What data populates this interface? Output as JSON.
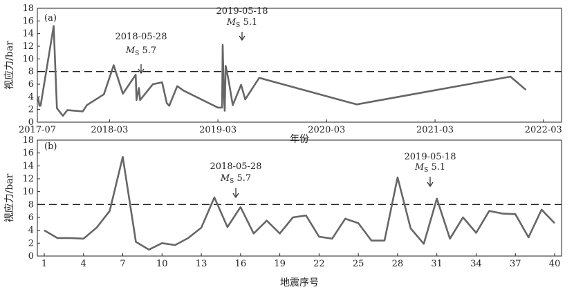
{
  "chart_data": [
    {
      "panel": "(a)",
      "type": "line",
      "xlabel": "年份",
      "ylabel": "视应力/bar",
      "ylim": [
        0,
        18
      ],
      "yticks": [
        "0",
        "2",
        "4",
        "6",
        "8",
        "10",
        "12",
        "14",
        "16",
        "18"
      ],
      "xlim": [
        "2017-07-01",
        "2022-05-01"
      ],
      "xticks": [
        {
          "date": "2017-07-01",
          "label": "2017-07"
        },
        {
          "date": "2018-03-01",
          "label": "2018-03"
        },
        {
          "date": "2019-03-01",
          "label": "2019-03"
        },
        {
          "date": "2020-03-01",
          "label": "2020-03"
        },
        {
          "date": "2021-03-01",
          "label": "2021-03"
        },
        {
          "date": "2022-03-01",
          "label": "2022-03"
        }
      ],
      "threshold": 8,
      "series": [
        {
          "color": "#666666",
          "points": [
            {
              "x": "2017-07-03",
              "y": 4.0
            },
            {
              "x": "2017-07-08",
              "y": 2.6
            },
            {
              "x": "2017-07-12",
              "y": 2.6
            },
            {
              "x": "2017-08-25",
              "y": 15.2
            },
            {
              "x": "2017-09-05",
              "y": 2.2
            },
            {
              "x": "2017-09-25",
              "y": 1.0
            },
            {
              "x": "2017-10-10",
              "y": 1.9
            },
            {
              "x": "2017-12-01",
              "y": 1.7
            },
            {
              "x": "2017-12-15",
              "y": 2.7
            },
            {
              "x": "2018-02-10",
              "y": 4.4
            },
            {
              "x": "2018-03-15",
              "y": 9.0
            },
            {
              "x": "2018-04-15",
              "y": 4.5
            },
            {
              "x": "2018-05-28",
              "y": 7.5
            },
            {
              "x": "2018-05-31",
              "y": 3.5
            },
            {
              "x": "2018-06-08",
              "y": 5.4
            },
            {
              "x": "2018-06-12",
              "y": 3.5
            },
            {
              "x": "2018-07-25",
              "y": 6.0
            },
            {
              "x": "2018-08-25",
              "y": 6.3
            },
            {
              "x": "2018-09-10",
              "y": 3.0
            },
            {
              "x": "2018-09-18",
              "y": 2.6
            },
            {
              "x": "2018-10-15",
              "y": 5.7
            },
            {
              "x": "2018-11-05",
              "y": 5.0
            },
            {
              "x": "2019-03-01",
              "y": 2.3
            },
            {
              "x": "2019-03-15",
              "y": 2.3
            },
            {
              "x": "2019-03-17",
              "y": 12.2
            },
            {
              "x": "2019-03-21",
              "y": 4.3
            },
            {
              "x": "2019-03-24",
              "y": 1.8
            },
            {
              "x": "2019-03-27",
              "y": 8.9
            },
            {
              "x": "2019-04-05",
              "y": 6.9
            },
            {
              "x": "2019-04-20",
              "y": 2.7
            },
            {
              "x": "2019-05-18",
              "y": 5.9
            },
            {
              "x": "2019-06-01",
              "y": 3.6
            },
            {
              "x": "2019-07-18",
              "y": 7.0
            },
            {
              "x": "2020-06-10",
              "y": 2.8
            },
            {
              "x": "2021-11-10",
              "y": 7.2
            },
            {
              "x": "2022-01-01",
              "y": 5.1
            }
          ]
        }
      ],
      "annotations": [
        {
          "date_label": "2018-05-28",
          "magnitude_prefix": "M",
          "magnitude_sub": "S",
          "magnitude_value": "5.7",
          "x": "2018-05-28"
        },
        {
          "date_label": "2019-05-18",
          "magnitude_prefix": "M",
          "magnitude_sub": "S",
          "magnitude_value": "5.1",
          "x": "2019-03-17"
        }
      ]
    },
    {
      "panel": "(b)",
      "type": "line",
      "xlabel": "地震序号",
      "ylabel": "视应力/bar",
      "ylim": [
        0,
        18
      ],
      "yticks": [
        "0",
        "2",
        "4",
        "6",
        "8",
        "10",
        "12",
        "14",
        "16",
        "18"
      ],
      "xlim": [
        1,
        40
      ],
      "xticks": [
        "1",
        "4",
        "7",
        "10",
        "13",
        "16",
        "19",
        "22",
        "25",
        "28",
        "31",
        "34",
        "37",
        "40"
      ],
      "threshold": 8,
      "series": [
        {
          "color": "#666666",
          "x": [
            1,
            2,
            3,
            4,
            5,
            6,
            7,
            8,
            9,
            10,
            11,
            12,
            13,
            14,
            15,
            16,
            17,
            18,
            19,
            20,
            21,
            22,
            23,
            24,
            25,
            26,
            27,
            28,
            29,
            30,
            31,
            32,
            33,
            34,
            35,
            36,
            37,
            38,
            39,
            40
          ],
          "y": [
            4.0,
            2.8,
            2.8,
            2.7,
            4.4,
            7.0,
            15.4,
            2.2,
            1.0,
            2.0,
            1.7,
            2.8,
            4.4,
            9.1,
            4.5,
            7.6,
            3.5,
            5.5,
            3.5,
            6.0,
            6.3,
            3.0,
            2.7,
            5.8,
            5.1,
            2.4,
            2.4,
            12.2,
            4.3,
            1.9,
            8.9,
            2.7,
            6.0,
            3.6,
            7.0,
            6.6,
            6.5,
            2.9,
            7.2,
            5.1
          ]
        }
      ],
      "annotations": [
        {
          "date_label": "2018-05-28",
          "magnitude_prefix": "M",
          "magnitude_sub": "S",
          "magnitude_value": "5.7",
          "x": 16
        },
        {
          "date_label": "2019-05-18",
          "magnitude_prefix": "M",
          "magnitude_sub": "S",
          "magnitude_value": "5.1",
          "x": 31
        }
      ]
    }
  ]
}
